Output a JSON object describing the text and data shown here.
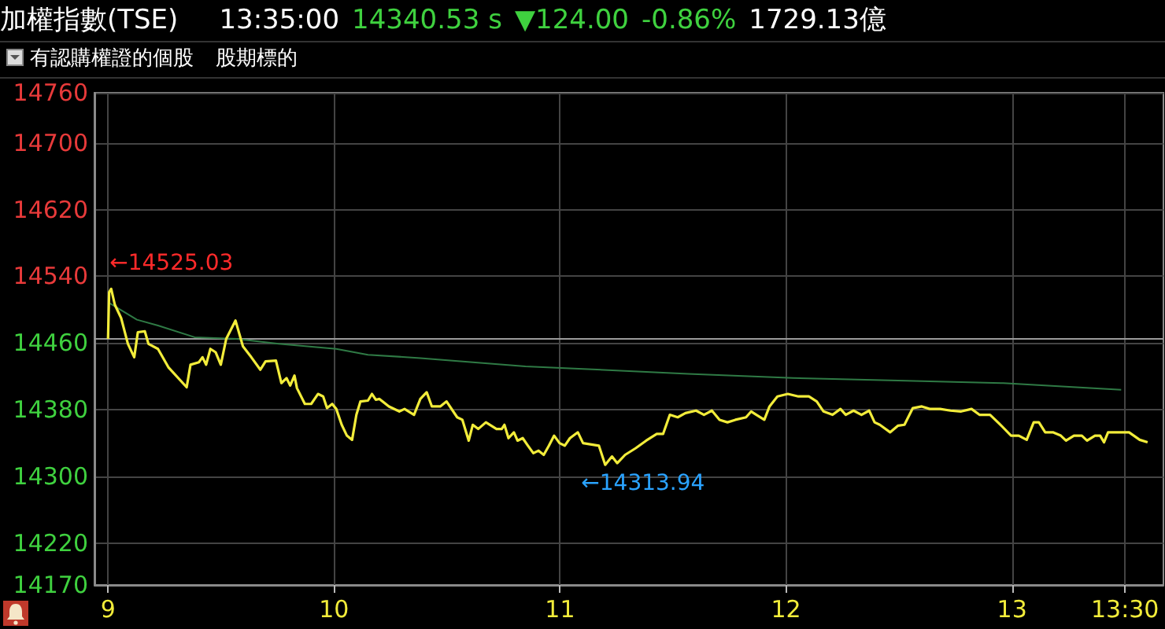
{
  "chart_data": {
    "type": "line",
    "title": "加權指數(TSE)",
    "annotations": [
      "13:35:00",
      "14340.53 s",
      "▼124.00",
      "-0.86%",
      "1729.13億",
      "有認購權證的個股",
      "股期標的",
      {
        "text": "←14525.03",
        "x": 9.014,
        "y": 14525
      },
      {
        "text": "←14313.94",
        "x": 11.2,
        "y": 14314
      }
    ],
    "series": [
      {
        "color": "#f2ec3a",
        "x": [
          9.0,
          9.005,
          9.014,
          9.03,
          9.058,
          9.088,
          9.116,
          9.132,
          9.163,
          9.179,
          9.221,
          9.267,
          9.348,
          9.365,
          9.402,
          9.418,
          9.434,
          9.453,
          9.476,
          9.499,
          9.523,
          9.564,
          9.597,
          9.634,
          9.674,
          9.697,
          9.743,
          9.767,
          9.79,
          9.806,
          9.825,
          9.836,
          9.871,
          9.899,
          9.929,
          9.952,
          9.969,
          9.992,
          10.01,
          10.034,
          10.057,
          10.08,
          10.099,
          10.117,
          10.15,
          10.168,
          10.185,
          10.201,
          10.243,
          10.289,
          10.312,
          10.354,
          10.382,
          10.41,
          10.433,
          10.47,
          10.498,
          10.545,
          10.568,
          10.596,
          10.614,
          10.638,
          10.672,
          10.719,
          10.742,
          10.754,
          10.772,
          10.796,
          10.812,
          10.835,
          10.858,
          10.882,
          10.905,
          10.928,
          10.951,
          10.974,
          10.998,
          11.021,
          11.044,
          11.079,
          11.102,
          11.172,
          11.2,
          11.23,
          11.253,
          11.288,
          11.335,
          11.381,
          11.428,
          11.456,
          11.486,
          11.521,
          11.555,
          11.602,
          11.637,
          11.672,
          11.706,
          11.741,
          11.776,
          11.823,
          11.846,
          11.869,
          11.904,
          11.927,
          11.962,
          12.008,
          12.055,
          12.101,
          12.136,
          12.166,
          12.206,
          12.241,
          12.264,
          12.299,
          12.334,
          12.368,
          12.392,
          12.415,
          12.461,
          12.496,
          12.524,
          12.561,
          12.601,
          12.636,
          12.682,
          12.728,
          12.775,
          12.821,
          12.856,
          12.903,
          12.949,
          12.996,
          13.03,
          13.065,
          13.096,
          13.119,
          13.147,
          13.181,
          13.216,
          13.239,
          13.274,
          13.309,
          13.332,
          13.367,
          13.39,
          13.407,
          13.425,
          13.472,
          13.518,
          13.565,
          13.6
        ],
        "values": [
          14465,
          14521,
          14525,
          14506,
          14490,
          14459,
          14443,
          14473,
          14474,
          14459,
          14453,
          14431,
          14407,
          14434,
          14437,
          14443,
          14434,
          14453,
          14449,
          14434,
          14465,
          14487,
          14456,
          14443,
          14428,
          14438,
          14439,
          14412,
          14418,
          14409,
          14421,
          14406,
          14387,
          14387,
          14399,
          14396,
          14382,
          14387,
          14381,
          14362,
          14349,
          14344,
          14374,
          14390,
          14391,
          14399,
          14392,
          14393,
          14384,
          14378,
          14381,
          14374,
          14393,
          14401,
          14384,
          14384,
          14390,
          14371,
          14368,
          14343,
          14362,
          14357,
          14365,
          14357,
          14357,
          14362,
          14346,
          14353,
          14343,
          14346,
          14337,
          14328,
          14331,
          14326,
          14337,
          14349,
          14340,
          14337,
          14346,
          14353,
          14340,
          14337,
          14314,
          14324,
          14316,
          14326,
          14334,
          14343,
          14351,
          14351,
          14374,
          14371,
          14376,
          14379,
          14374,
          14379,
          14368,
          14365,
          14368,
          14371,
          14378,
          14374,
          14368,
          14384,
          14396,
          14399,
          14396,
          14396,
          14390,
          14378,
          14374,
          14381,
          14374,
          14379,
          14374,
          14379,
          14365,
          14362,
          14353,
          14361,
          14362,
          14382,
          14384,
          14381,
          14381,
          14379,
          14378,
          14381,
          14374,
          14374,
          14362,
          14349,
          14349,
          14344,
          14365,
          14365,
          14353,
          14353,
          14349,
          14343,
          14349,
          14349,
          14343,
          14349,
          14349,
          14341,
          14353,
          14353,
          14353,
          14344,
          14341
        ]
      },
      {
        "color": "#2f7a45",
        "x": [
          9.0,
          9.128,
          9.221,
          9.383,
          9.569,
          9.755,
          10.01,
          10.15,
          10.382,
          10.614,
          10.847,
          11.102,
          11.567,
          12.031,
          12.496,
          12.961,
          13.483
        ],
        "values": [
          14509,
          14488,
          14481,
          14467,
          14465,
          14459,
          14453,
          14446,
          14442,
          14437,
          14432,
          14429,
          14423,
          14418,
          14415,
          14412,
          14404
        ]
      }
    ],
    "xlim": [
      8.94,
      13.67
    ],
    "xticks": [
      9,
      10,
      11,
      12,
      13,
      {
        "value": 13.5,
        "label": "13:30"
      }
    ],
    "ylim": [
      14170,
      14760
    ],
    "yticks": [
      14170,
      14220,
      14300,
      14380,
      14460,
      14540,
      14620,
      14700,
      14760
    ],
    "ref_lines": [
      {
        "axis": "y",
        "value": 14464.53,
        "label": null,
        "color": "#9a9a9a"
      }
    ],
    "grid": true,
    "marker": "none",
    "line_style": "solid"
  }
}
